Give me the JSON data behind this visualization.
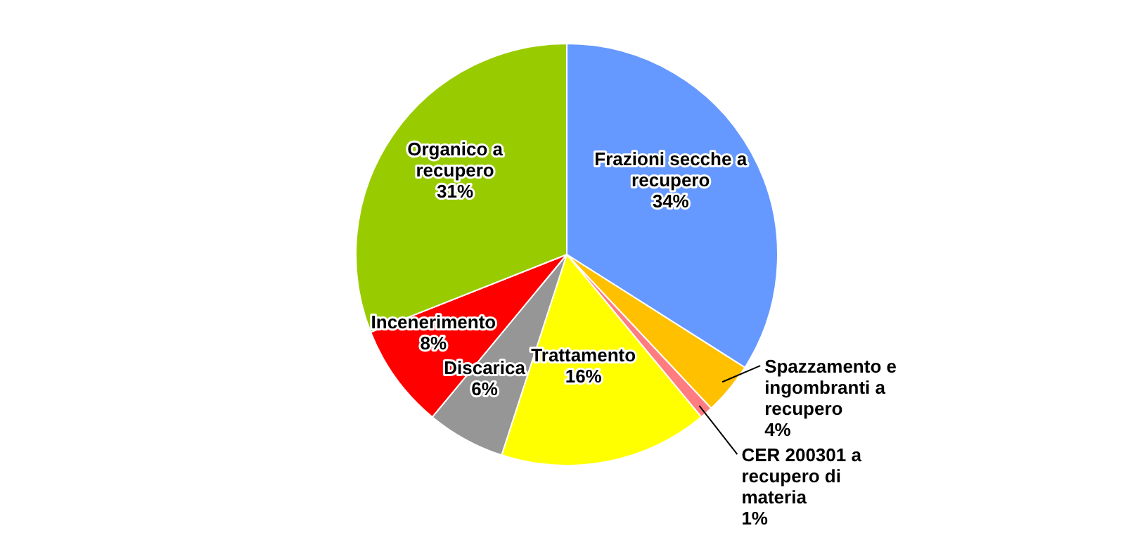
{
  "chart_data": {
    "type": "pie",
    "categories": [
      "Frazioni secche a recupero",
      "Spazzamento e ingombranti a recupero",
      "CER 200301  a recupero di materia",
      "Trattamento",
      "Discarica",
      "Incenerimento",
      "Organico a recupero"
    ],
    "values": [
      34,
      4,
      1,
      16,
      6,
      8,
      31
    ],
    "value_labels": [
      "34%",
      "4%",
      "1%",
      "16%",
      "6%",
      "8%",
      "31%"
    ],
    "colors": [
      "#6699ff",
      "#ffc000",
      "#ff7c80",
      "#ffff00",
      "#969696",
      "#ff0000",
      "#99cc00"
    ],
    "legend": false
  }
}
